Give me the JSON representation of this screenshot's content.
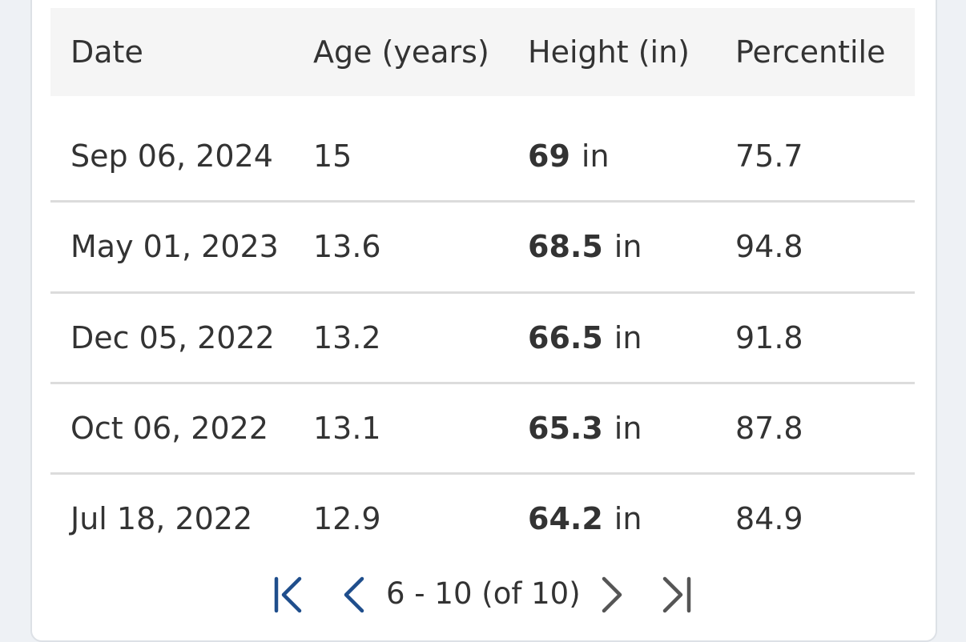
{
  "table": {
    "columns": [
      "Date",
      "Age (years)",
      "Height (in)",
      "Percentile"
    ],
    "rows": [
      {
        "date": "Sep 06, 2024",
        "age": "15",
        "height": "69",
        "height_unit": "in",
        "percentile": "75.7"
      },
      {
        "date": "May 01, 2023",
        "age": "13.6",
        "height": "68.5",
        "height_unit": "in",
        "percentile": "94.8"
      },
      {
        "date": "Dec 05, 2022",
        "age": "13.2",
        "height": "66.5",
        "height_unit": "in",
        "percentile": "91.8"
      },
      {
        "date": "Oct 06, 2022",
        "age": "13.1",
        "height": "65.3",
        "height_unit": "in",
        "percentile": "87.8"
      },
      {
        "date": "Jul 18, 2022",
        "age": "12.9",
        "height": "64.2",
        "height_unit": "in",
        "percentile": "84.9"
      }
    ]
  },
  "pagination": {
    "range": "6 - 10 (of 10)"
  }
}
